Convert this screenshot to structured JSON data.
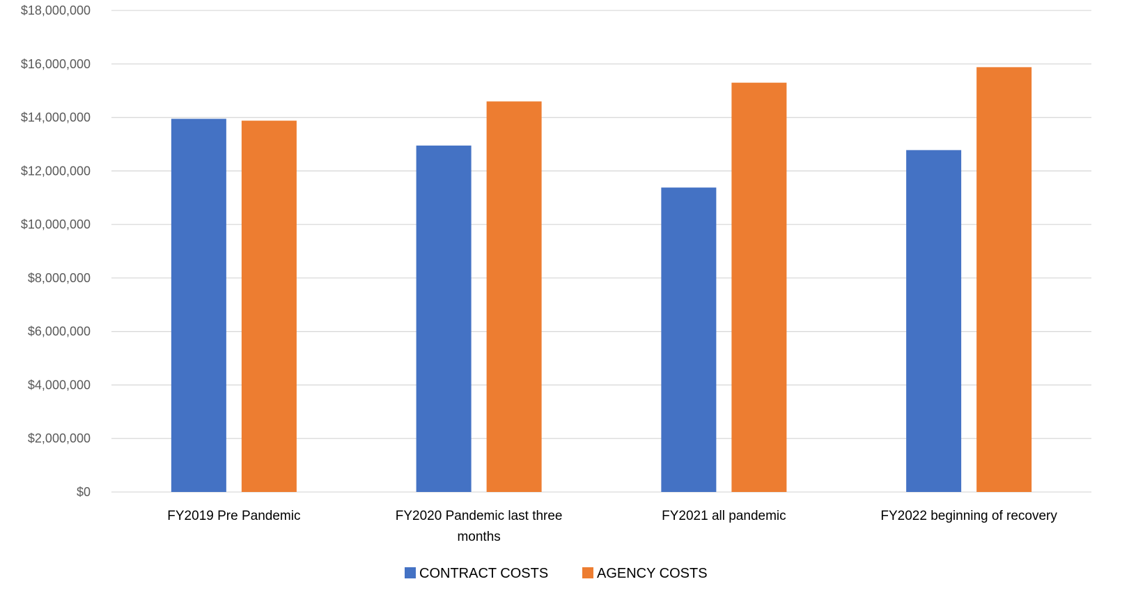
{
  "chart_data": {
    "type": "bar",
    "title": "",
    "xlabel": "",
    "ylabel": "",
    "ylim": [
      0,
      18000000
    ],
    "y_ticks": [
      0,
      2000000,
      4000000,
      6000000,
      8000000,
      10000000,
      12000000,
      14000000,
      16000000,
      18000000
    ],
    "y_tick_labels": [
      "$0",
      "$2,000,000",
      "$4,000,000",
      "$6,000,000",
      "$8,000,000",
      "$10,000,000",
      "$12,000,000",
      "$14,000,000",
      "$16,000,000",
      "$18,000,000"
    ],
    "categories": [
      [
        "FY2019 Pre Pandemic"
      ],
      [
        "FY2020 Pandemic last three",
        "months"
      ],
      [
        "FY2021 all pandemic"
      ],
      [
        "FY2022 beginning of recovery"
      ]
    ],
    "series": [
      {
        "name": "CONTRACT COSTS",
        "color": "#4472C4",
        "values": [
          13950000,
          12950000,
          11380000,
          12780000
        ]
      },
      {
        "name": "AGENCY COSTS",
        "color": "#ED7D31",
        "values": [
          13880000,
          14600000,
          15300000,
          15880000
        ]
      }
    ],
    "grid": true,
    "legend_position": "bottom-center"
  }
}
